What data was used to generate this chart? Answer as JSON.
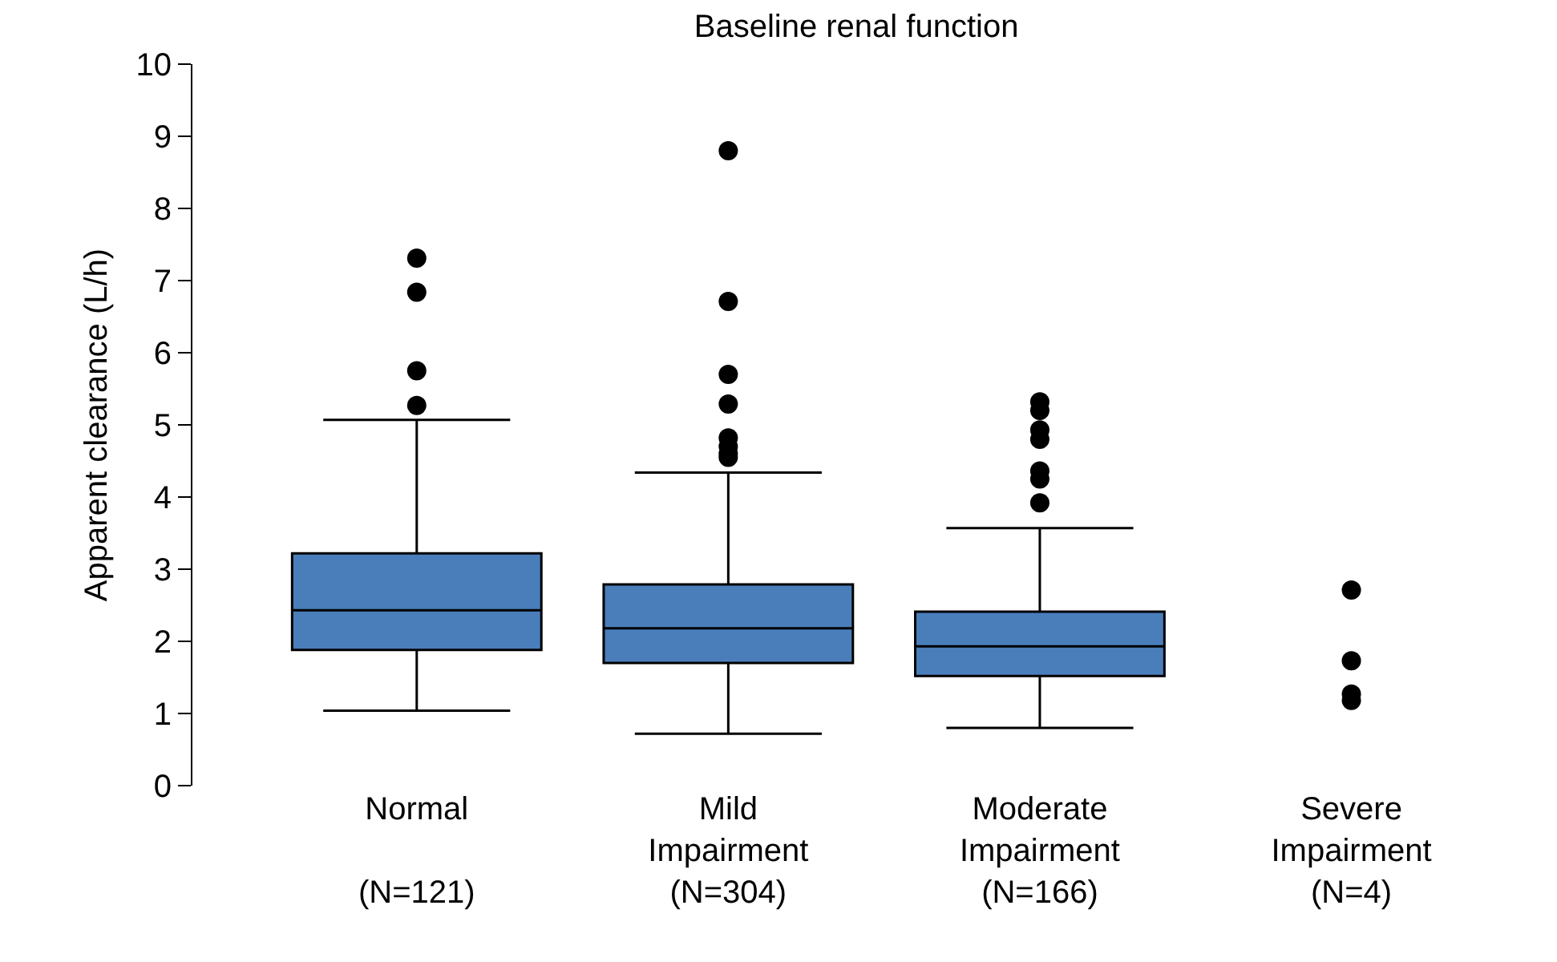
{
  "chart_data": {
    "type": "box",
    "title": "Baseline renal function",
    "ylabel": "Apparent clearance (L/h)",
    "categories": [
      "Normal\n\n(N=121)",
      "Mild\nImpairment\n(N=304)",
      "Moderate\nImpairment\n(N=166)",
      "Severe\nImpairment\n(N=4)"
    ],
    "boxes": [
      {
        "low": 1.04,
        "q1": 1.88,
        "median": 2.43,
        "q3": 3.22,
        "high": 5.07,
        "outliers": [
          7.31,
          6.84,
          5.75,
          5.27
        ]
      },
      {
        "low": 0.72,
        "q1": 1.7,
        "median": 2.18,
        "q3": 2.79,
        "high": 4.34,
        "outliers": [
          8.8,
          6.71,
          5.7,
          5.29,
          4.82,
          4.7,
          4.6,
          4.55
        ]
      },
      {
        "low": 0.8,
        "q1": 1.52,
        "median": 1.93,
        "q3": 2.41,
        "high": 3.57,
        "outliers": [
          5.32,
          5.2,
          4.93,
          4.8,
          4.36,
          4.25,
          3.92
        ]
      },
      null
    ],
    "color": "#4a7ebb",
    "series": [
      {
        "type": "scatter",
        "color": "#000000",
        "x": [
          "Severe\nImpairment\n(N=4)",
          "Severe\nImpairment\n(N=4)",
          "Severe\nImpairment\n(N=4)",
          "Severe\nImpairment\n(N=4)"
        ],
        "values": [
          2.71,
          1.73,
          1.27,
          1.18
        ]
      }
    ],
    "ylim": [
      0,
      10
    ],
    "yticks": [
      0,
      1,
      2,
      3,
      4,
      5,
      6,
      7,
      8,
      9,
      10
    ],
    "grid": false,
    "marker": "circle"
  }
}
